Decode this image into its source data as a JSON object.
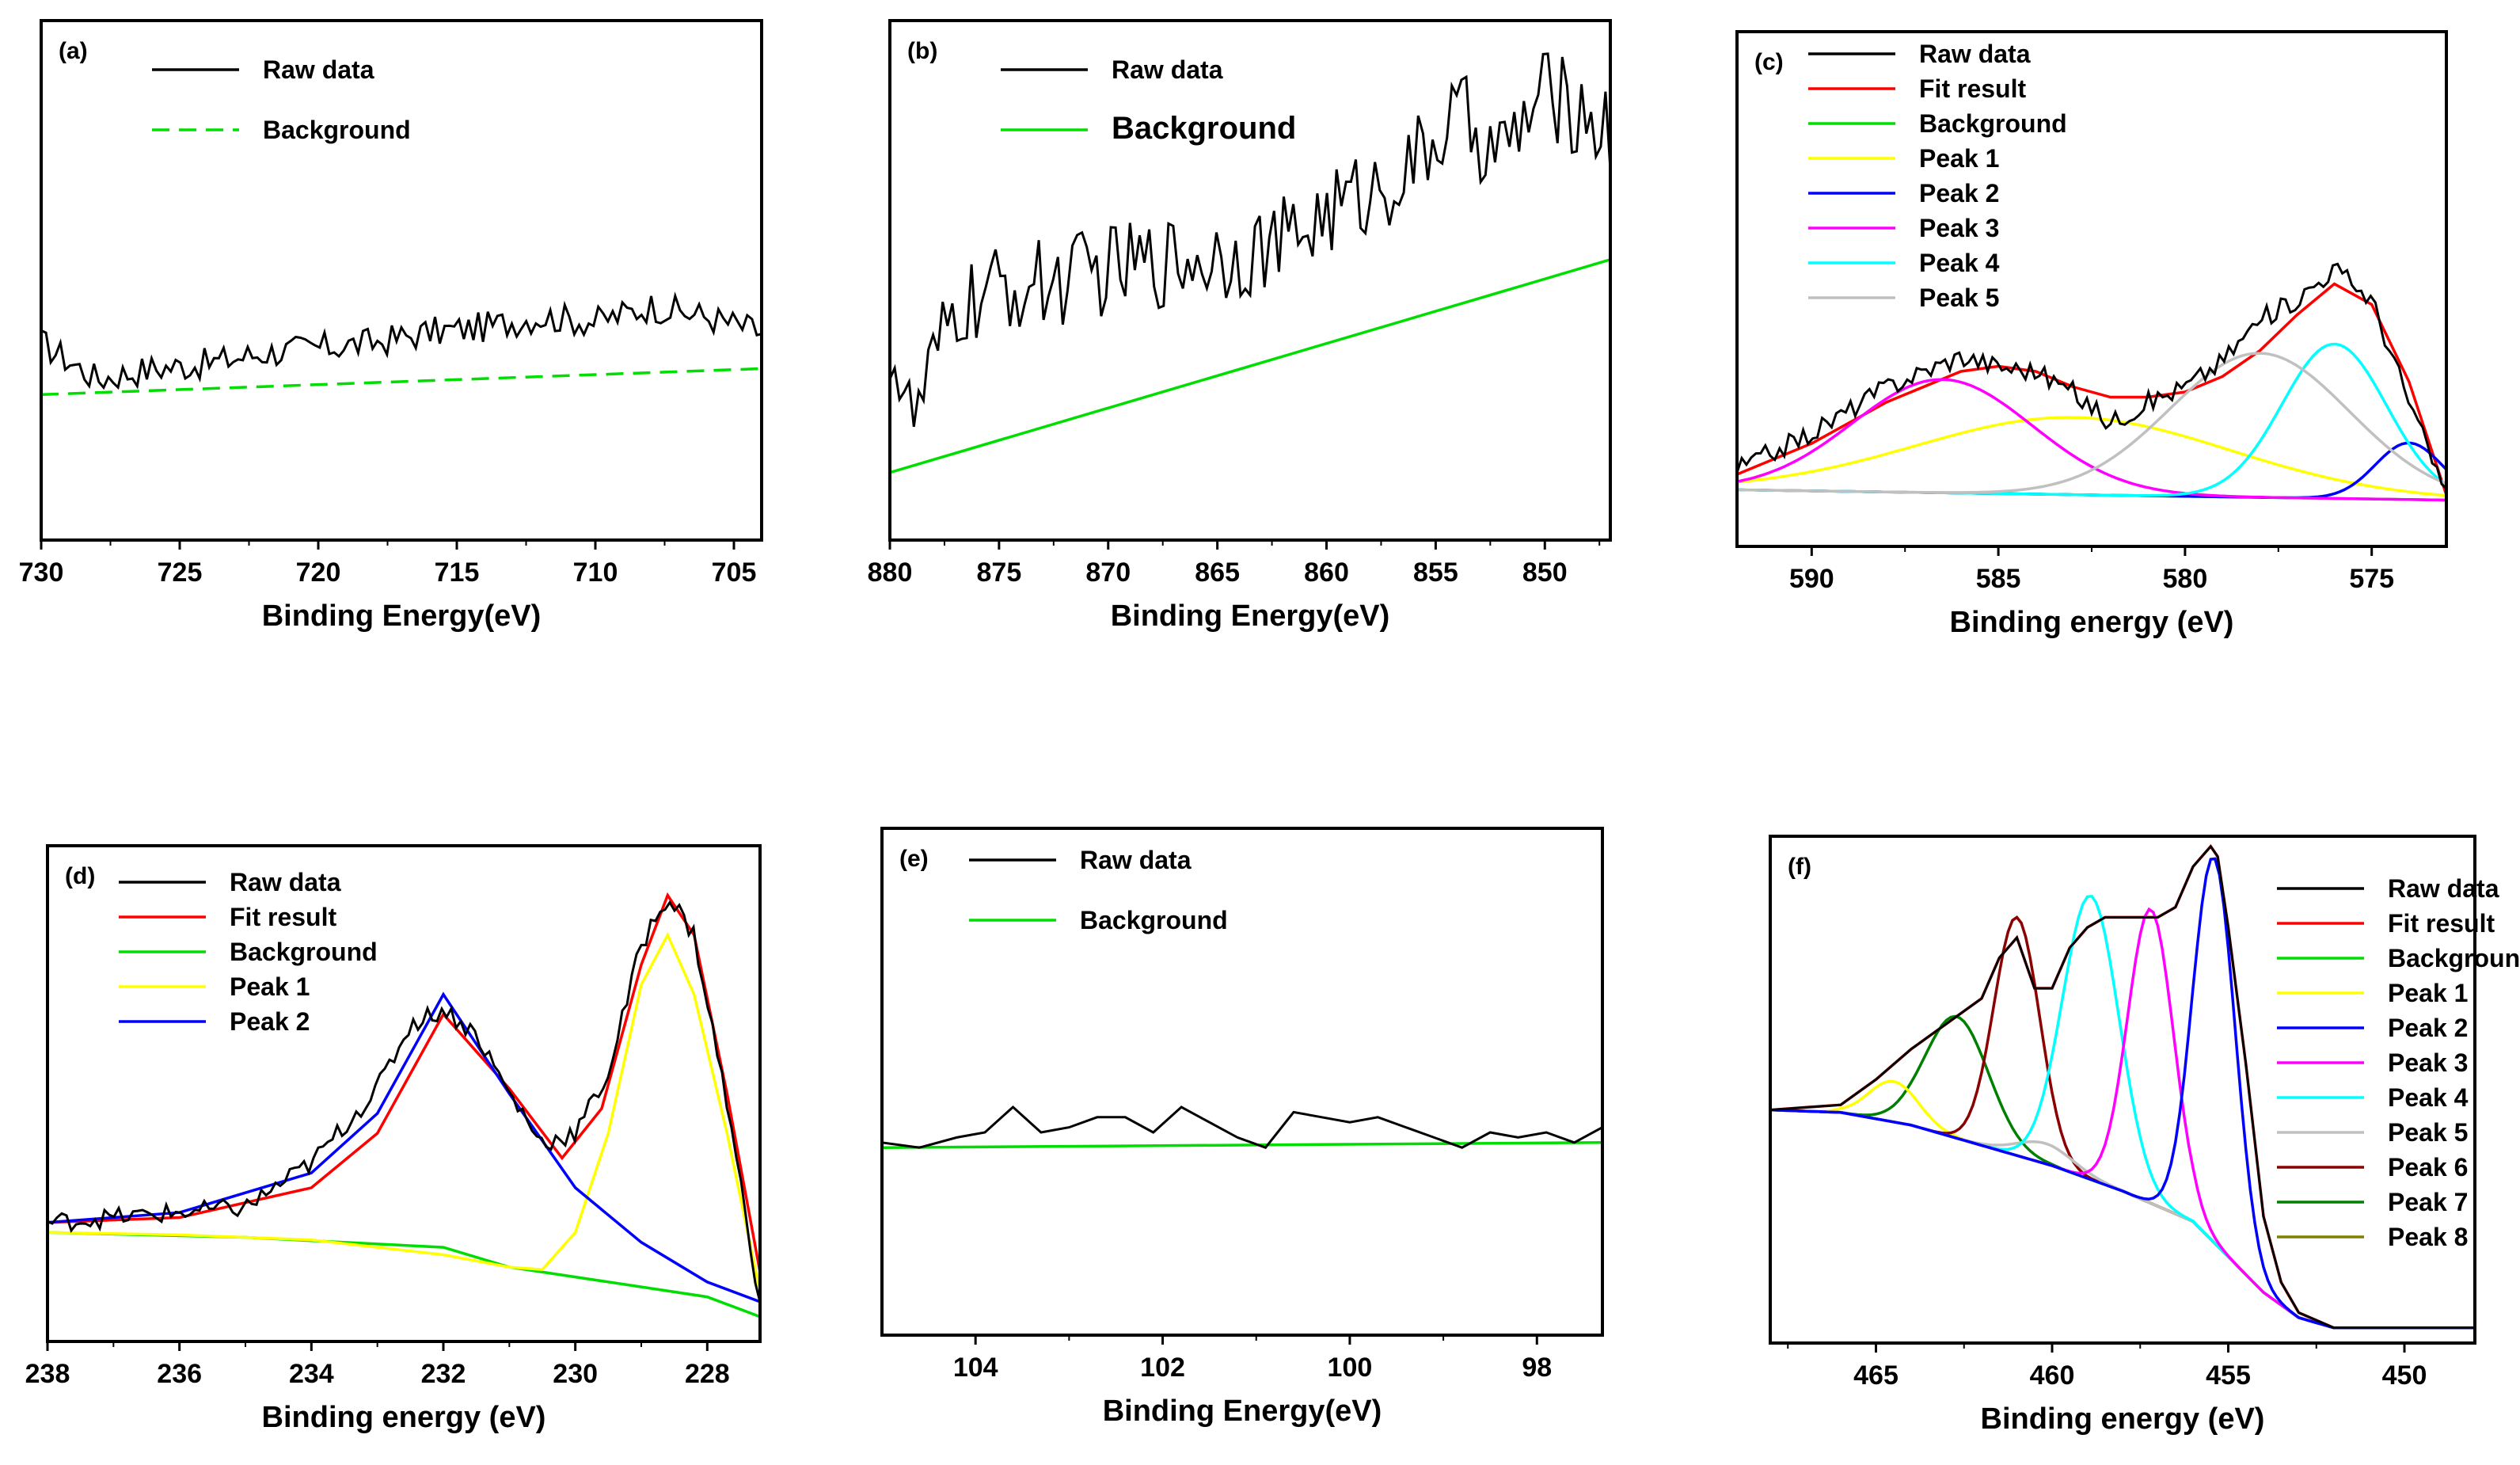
{
  "colors": {
    "raw": "#000000",
    "fit": "#ff0000",
    "background": "#00dd00",
    "peak1": "#ffff00",
    "peak2": "#0000ff",
    "peak3": "#ff00ff",
    "peak4": "#00ffff",
    "peak5": "#c0c0c0",
    "peak6": "#8b0000",
    "peak7": "#008000",
    "peak8": "#808000"
  },
  "chart_data": [
    {
      "type": "line",
      "panel": "(a)",
      "xlabel": "Binding Energy(eV)",
      "ylabel": "",
      "xlim": [
        730,
        704
      ],
      "ylim": [
        0,
        100
      ],
      "xticks": [
        730,
        725,
        720,
        715,
        710,
        705
      ],
      "legend": [
        "Raw data",
        "Background"
      ],
      "legend_dashed": [
        false,
        true
      ],
      "series": [
        {
          "name": "Raw data",
          "color_key": "raw",
          "x": [
            730,
            728,
            726,
            724,
            722,
            720,
            718,
            716,
            714,
            712,
            710,
            708,
            706,
            704
          ],
          "y": [
            38,
            31,
            33,
            34,
            36,
            37,
            38,
            40,
            41,
            43,
            42,
            45,
            43,
            40
          ]
        },
        {
          "name": "Background",
          "color_key": "background",
          "dashed": true,
          "x": [
            730,
            704
          ],
          "y": [
            28,
            33
          ]
        }
      ],
      "noise": 3
    },
    {
      "type": "line",
      "panel": "(b)",
      "xlabel": "Binding Energy(eV)",
      "ylabel": "",
      "xlim": [
        880,
        847
      ],
      "ylim": [
        0,
        100
      ],
      "xticks": [
        880,
        875,
        870,
        865,
        860,
        855,
        850
      ],
      "legend": [
        "Raw data",
        "Background"
      ],
      "legend_large": [
        false,
        true
      ],
      "series": [
        {
          "name": "Raw data",
          "color_key": "raw",
          "x": [
            880,
            879,
            877,
            875,
            872,
            870,
            867,
            865,
            862,
            860,
            858,
            856,
            854,
            852,
            850,
            848,
            847
          ],
          "y": [
            38,
            22,
            44,
            48,
            50,
            52,
            54,
            55,
            57,
            63,
            67,
            72,
            82,
            74,
            86,
            82,
            78
          ]
        },
        {
          "name": "Background",
          "color_key": "background",
          "x": [
            880,
            847
          ],
          "y": [
            13,
            54
          ]
        }
      ],
      "noise": 9
    },
    {
      "type": "line",
      "panel": "(c)",
      "xlabel": "Binding energy (eV)",
      "ylabel": "",
      "xlim": [
        592,
        573
      ],
      "ylim": [
        0,
        100
      ],
      "xticks": [
        590,
        585,
        580,
        575
      ],
      "legend": [
        "Raw data",
        "Fit result",
        "Background",
        "Peak 1",
        "Peak 2",
        "Peak 3",
        "Peak 4",
        "Peak 5"
      ],
      "series": [
        {
          "name": "Raw data",
          "color_key": "raw",
          "x": [
            592,
            590,
            588,
            586,
            585,
            584,
            583,
            582,
            581,
            580,
            579,
            578,
            577,
            576,
            575,
            574,
            573
          ],
          "y": [
            15,
            22,
            31,
            37,
            35,
            34,
            30,
            24,
            28,
            31,
            36,
            44,
            48,
            54,
            48,
            28,
            10
          ]
        },
        {
          "name": "Fit result",
          "color_key": "fit",
          "x": [
            592,
            590,
            588,
            586,
            585,
            584,
            583,
            582,
            581,
            580,
            579,
            578,
            577,
            576,
            575,
            574,
            573
          ],
          "y": [
            14,
            20,
            28,
            34,
            35,
            34,
            31,
            29,
            29,
            30,
            33,
            38,
            45,
            51,
            47,
            32,
            10
          ]
        },
        {
          "name": "Background",
          "color_key": "background",
          "x": [
            592,
            573
          ],
          "y": [
            11,
            9
          ]
        },
        {
          "name": "Peak 1",
          "color_key": "peak1",
          "gauss": [
            583,
            4.2,
            15
          ]
        },
        {
          "name": "Peak 2",
          "color_key": "peak2",
          "gauss": [
            574,
            0.9,
            11
          ]
        },
        {
          "name": "Peak 3",
          "color_key": "peak3",
          "gauss": [
            586.5,
            2.4,
            22
          ]
        },
        {
          "name": "Peak 4",
          "color_key": "peak4",
          "gauss": [
            576,
            1.4,
            30
          ]
        },
        {
          "name": "Peak 5",
          "color_key": "peak5",
          "gauss": [
            578,
            2.4,
            28
          ]
        }
      ],
      "noise": 2
    },
    {
      "type": "line",
      "panel": "(d)",
      "xlabel": "Binding energy (eV)",
      "ylabel": "",
      "xlim": [
        238,
        227.2
      ],
      "ylim": [
        0,
        100
      ],
      "xticks": [
        238,
        236,
        234,
        232,
        230,
        228
      ],
      "legend": [
        "Raw data",
        "Fit result",
        "Background",
        "Peak 1",
        "Peak 2"
      ],
      "series": [
        {
          "name": "Raw data",
          "color_key": "raw",
          "x": [
            238,
            237,
            236,
            235,
            234,
            233,
            232.5,
            232,
            231.5,
            231,
            230.5,
            230,
            229.5,
            229,
            228.6,
            228.2,
            227.7,
            227.2
          ],
          "y": [
            24,
            25,
            26,
            27,
            36,
            51,
            64,
            67,
            62,
            50,
            40,
            42,
            54,
            80,
            90,
            82,
            48,
            8
          ]
        },
        {
          "name": "Fit result",
          "color_key": "fit",
          "x": [
            238,
            236,
            234,
            233,
            232,
            231,
            230.2,
            229.6,
            229,
            228.6,
            228.2,
            227.7,
            227.2
          ],
          "y": [
            24,
            25,
            31,
            42,
            66,
            51,
            37,
            47,
            76,
            90,
            82,
            50,
            14
          ]
        },
        {
          "name": "Background",
          "color_key": "background",
          "x": [
            238,
            235,
            232,
            231,
            229,
            228,
            227.2
          ],
          "y": [
            22,
            21,
            19,
            15,
            11,
            9,
            5
          ]
        },
        {
          "name": "Peak 1",
          "color_key": "peak1",
          "x": [
            238,
            236,
            234,
            232,
            231,
            230.5,
            230,
            229.5,
            229,
            228.6,
            228.2,
            227.7,
            227.2
          ],
          "y": [
            22,
            21.5,
            20.5,
            17.5,
            15,
            14.5,
            22,
            42,
            72,
            82,
            70,
            42,
            10
          ]
        },
        {
          "name": "Peak 2",
          "color_key": "peak2",
          "x": [
            238,
            236,
            234,
            233,
            232,
            231,
            230,
            229,
            228,
            227.2
          ],
          "y": [
            24,
            26,
            34,
            46,
            70,
            50,
            31,
            20,
            12,
            8
          ]
        }
      ],
      "noise": 2
    },
    {
      "type": "line",
      "panel": "(e)",
      "xlabel": "Binding Energy(eV)",
      "ylabel": "",
      "xlim": [
        105,
        97.3
      ],
      "ylim": [
        0,
        100
      ],
      "xticks": [
        104,
        102,
        100,
        98
      ],
      "legend": [
        "Raw data",
        "Background"
      ],
      "series": [
        {
          "name": "Raw data",
          "color_key": "raw",
          "x": [
            105,
            104.6,
            104.2,
            103.9,
            103.6,
            103.3,
            103,
            102.7,
            102.4,
            102.1,
            101.8,
            101.5,
            101.2,
            100.9,
            100.6,
            100.3,
            100,
            99.7,
            99.4,
            99.1,
            98.8,
            98.5,
            98.2,
            97.9,
            97.6,
            97.3
          ],
          "y": [
            38,
            37,
            39,
            40,
            45,
            40,
            41,
            43,
            43,
            40,
            45,
            42,
            39,
            37,
            44,
            43,
            42,
            43,
            41,
            39,
            37,
            40,
            39,
            40,
            38,
            41
          ]
        },
        {
          "name": "Background",
          "color_key": "background",
          "x": [
            105,
            97.3
          ],
          "y": [
            37,
            38
          ]
        }
      ],
      "noise": 0
    },
    {
      "type": "line",
      "panel": "(f)",
      "xlabel": "Binding energy (eV)",
      "ylabel": "",
      "xlim": [
        468,
        448
      ],
      "ylim": [
        0,
        100
      ],
      "xticks": [
        465,
        460,
        455,
        450
      ],
      "legend": [
        "Raw data",
        "Fit result",
        "Background",
        "Peak 1",
        "Peak 2",
        "Peak 3",
        "Peak 4",
        "Peak 5",
        "Peak 6",
        "Peak 7",
        "Peak 8"
      ],
      "legend_right": true,
      "series": [
        {
          "name": "Raw data",
          "color_key": "raw",
          "x": [
            468,
            466,
            465,
            464,
            463,
            462,
            461.5,
            461,
            460.5,
            460,
            459.5,
            459,
            458.5,
            458,
            457.5,
            457,
            456.5,
            456,
            455.5,
            455.3,
            455,
            454.5,
            454,
            453.5,
            453,
            452,
            450,
            448
          ],
          "y": [
            46,
            47,
            52,
            58,
            63,
            68,
            76,
            80,
            70,
            70,
            78,
            82,
            84,
            84,
            84,
            84,
            86,
            94,
            98,
            96,
            82,
            55,
            25,
            12,
            6,
            3,
            3,
            3
          ]
        },
        {
          "name": "Fit result",
          "color_key": "fit",
          "x": [
            468,
            466,
            465,
            464,
            463,
            462,
            461.5,
            461,
            460.5,
            460,
            459.5,
            459,
            458.5,
            458,
            457.5,
            457,
            456.5,
            456,
            455.5,
            455.3,
            455,
            454.5,
            454,
            453.5,
            453,
            452,
            450,
            448
          ],
          "y": [
            46,
            47,
            52,
            58,
            63,
            68,
            76,
            80,
            70,
            70,
            78,
            82,
            84,
            84,
            84,
            84,
            86,
            94,
            98,
            96,
            82,
            55,
            25,
            12,
            6,
            3,
            3,
            3
          ]
        },
        {
          "name": "Background",
          "color_key": "background",
          "x": [
            468,
            466,
            464,
            462,
            460,
            458,
            456,
            455,
            454,
            453,
            452,
            450,
            448
          ],
          "y": [
            46,
            45.5,
            43,
            39,
            35,
            30,
            24,
            17,
            10,
            5,
            3,
            3,
            3
          ]
        },
        {
          "name": "Peak 8",
          "color_key": "peak8",
          "x": [
            468,
            466,
            464,
            462,
            460,
            458,
            456,
            455,
            454,
            453,
            452,
            450,
            448
          ],
          "y": [
            46,
            45.5,
            43,
            39,
            35,
            30,
            24,
            17,
            10,
            5,
            3,
            3,
            3
          ]
        },
        {
          "name": "Peak 7",
          "color_key": "peak7",
          "gauss": [
            462.7,
            0.9,
            24
          ],
          "base": "bg"
        },
        {
          "name": "Peak 1",
          "color_key": "peak1",
          "gauss": [
            464.5,
            0.7,
            8
          ],
          "base": "bg"
        },
        {
          "name": "Peak 6",
          "color_key": "peak6",
          "gauss": [
            461,
            0.65,
            47
          ],
          "base": "bg"
        },
        {
          "name": "Peak 5",
          "color_key": "peak5",
          "gauss": [
            460.2,
            0.8,
            4
          ],
          "base": "bg"
        },
        {
          "name": "Peak 4",
          "color_key": "peak4",
          "gauss": [
            458.9,
            0.8,
            56
          ],
          "base": "bg"
        },
        {
          "name": "Peak 3",
          "color_key": "peak3",
          "gauss": [
            457.2,
            0.65,
            58
          ],
          "base": "bg"
        },
        {
          "name": "Peak 2",
          "color_key": "peak2",
          "gauss": [
            455.4,
            0.6,
            76
          ],
          "base": "bg"
        }
      ],
      "noise": 0
    }
  ]
}
